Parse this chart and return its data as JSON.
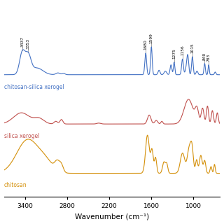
{
  "xlabel": "Wavenumber (cm⁻¹)",
  "xlim": [
    3700,
    620
  ],
  "ylim": [
    -0.5,
    3.8
  ],
  "background_color": "#ffffff",
  "line_colors": {
    "blue": "#4472c4",
    "red": "#c0504d",
    "orange": "#d4900a"
  },
  "labels": {
    "blue": "chitosan-silica xerogel",
    "red": "silica xerogel",
    "orange": "chitosan"
  },
  "peak_annotations": [
    {
      "x": 3437,
      "label": "3437"
    },
    {
      "x": 3353,
      "label": "3353"
    },
    {
      "x": 1680,
      "label": "1680"
    },
    {
      "x": 1599,
      "label": "1599"
    },
    {
      "x": 1275,
      "label": "1275"
    },
    {
      "x": 1156,
      "label": "1156"
    },
    {
      "x": 1015,
      "label": "1015"
    },
    {
      "x": 840,
      "label": "840"
    },
    {
      "x": 783,
      "label": "783"
    }
  ],
  "xticks": [
    3400,
    2800,
    2200,
    1600,
    1000
  ],
  "offsets": {
    "blue": 2.2,
    "red": 1.1,
    "orange": 0.0
  },
  "label_y_offsets": {
    "blue": -0.18,
    "red": -0.18,
    "orange": -0.18
  }
}
